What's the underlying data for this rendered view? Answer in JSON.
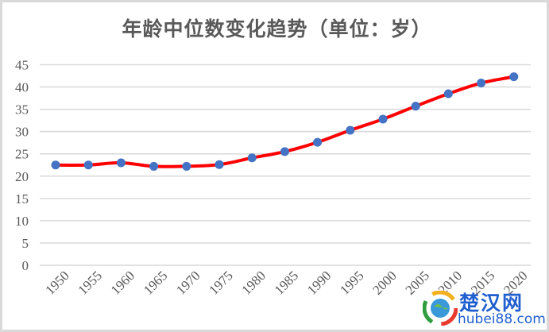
{
  "chart_data": {
    "type": "line",
    "title": "年龄中位数变化趋势（单位：岁）",
    "xlabel": "",
    "ylabel": "",
    "categories": [
      "1950",
      "1955",
      "1960",
      "1965",
      "1970",
      "1975",
      "1980",
      "1985",
      "1990",
      "1995",
      "2000",
      "2005",
      "2010",
      "2015",
      "2020"
    ],
    "series": [
      {
        "name": "年龄中位数",
        "values": [
          22.5,
          22.5,
          23.0,
          22.2,
          22.2,
          22.6,
          24.1,
          25.5,
          27.6,
          30.3,
          32.8,
          35.7,
          38.5,
          40.9,
          42.3
        ],
        "line_color": "#ff0000",
        "marker_color": "#4472c4"
      }
    ],
    "yticks": [
      0,
      5,
      10,
      15,
      20,
      25,
      30,
      35,
      40,
      45
    ],
    "ylim": [
      0,
      45
    ],
    "grid": true,
    "legend": null
  },
  "watermark": {
    "cn": "楚汉网",
    "en": "hubei88.com"
  }
}
